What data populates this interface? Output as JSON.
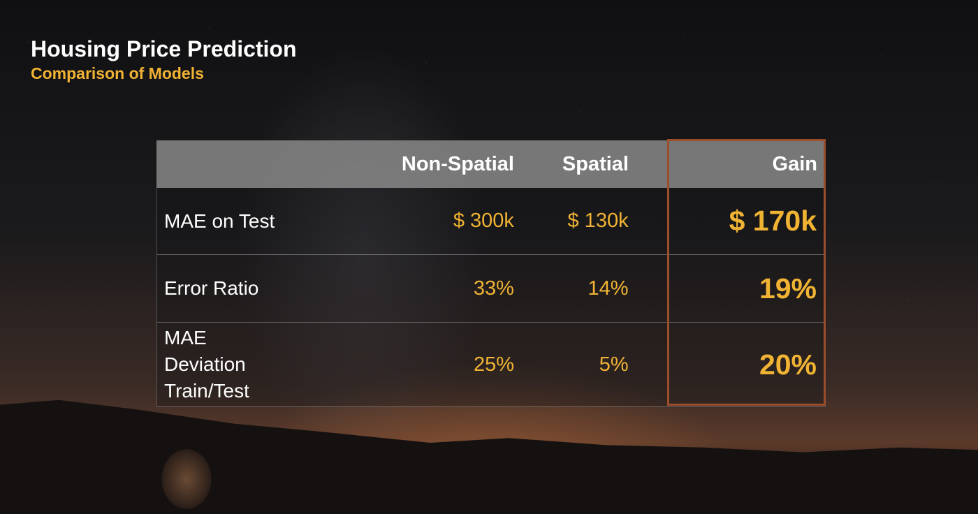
{
  "slide": {
    "title": "Housing Price Prediction",
    "subtitle": "Comparison of Models",
    "accent_color": "#f0b333",
    "highlight_color": "#9a4e2c"
  },
  "table": {
    "headers": [
      "",
      "Non-Spatial",
      "Spatial",
      "Gain"
    ],
    "rows": [
      {
        "label": "MAE on Test",
        "non_spatial": "$ 300k",
        "spatial": "$ 130k",
        "gain": "$ 170k"
      },
      {
        "label": "Error Ratio",
        "non_spatial": "33%",
        "spatial": "14%",
        "gain": "19%"
      },
      {
        "label": "MAE Deviation Train/Test",
        "non_spatial": "25%",
        "spatial": "5%",
        "gain": "20%"
      }
    ]
  }
}
